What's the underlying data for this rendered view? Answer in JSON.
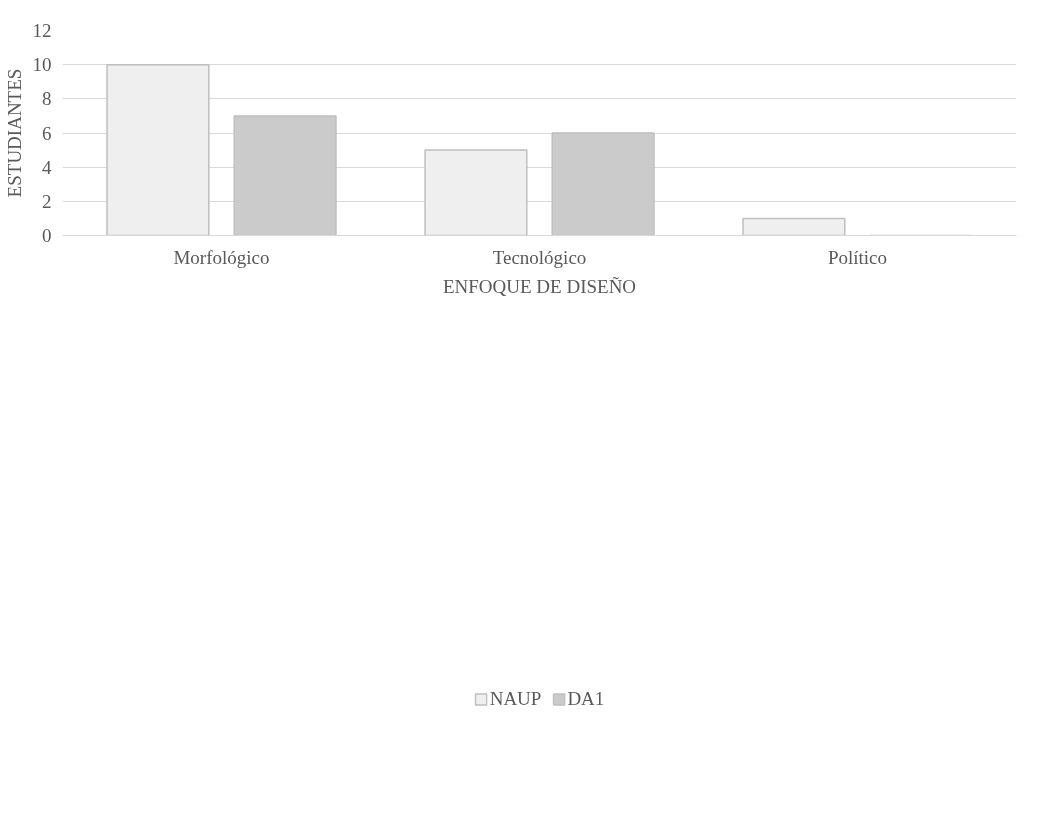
{
  "chart_data": {
    "type": "bar",
    "xlabel": "ENFOQUE DE DISEÑO",
    "ylabel": "ESTUDIANTES",
    "categories": [
      "Morfológico",
      "Tecnológico",
      "Político"
    ],
    "series": [
      {
        "name": "NAUP",
        "color": "#efefef",
        "values": [
          10,
          5,
          1
        ]
      },
      {
        "name": "DA1",
        "color": "#cbcbcb",
        "values": [
          7,
          6,
          0
        ]
      }
    ],
    "ylim": [
      0,
      12
    ],
    "yticks": [
      0,
      2,
      4,
      6,
      8,
      10,
      12
    ],
    "grid": "y",
    "legend": "bottom"
  }
}
